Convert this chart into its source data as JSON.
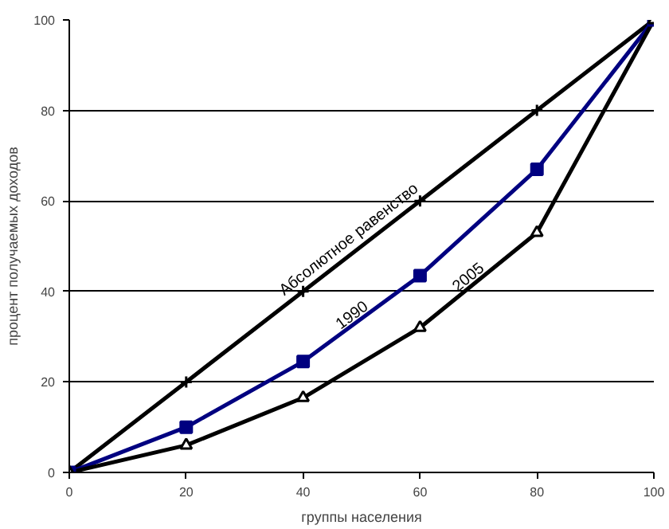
{
  "chart_data": {
    "type": "line",
    "xlabel": "группы населения",
    "ylabel": "процент получаемых доходов",
    "x": [
      0,
      20,
      40,
      60,
      80,
      100
    ],
    "series": [
      {
        "name": "Абсолютное равенство",
        "color": "#000000",
        "marker": "cross",
        "values": [
          0,
          20,
          40,
          60,
          80,
          100
        ]
      },
      {
        "name": "1990",
        "color": "#000080",
        "marker": "square",
        "values": [
          0,
          10,
          24.5,
          43.5,
          67,
          100
        ]
      },
      {
        "name": "2005",
        "color": "#000000",
        "marker": "triangle",
        "values": [
          0,
          6,
          16.5,
          32,
          53,
          100
        ]
      }
    ],
    "xlim": [
      0,
      100
    ],
    "ylim": [
      0,
      100
    ],
    "xticks": [
      0,
      20,
      40,
      60,
      80,
      100
    ],
    "yticks": [
      0,
      20,
      40,
      60,
      80,
      100
    ],
    "grid": "y",
    "line_style": "solid"
  }
}
